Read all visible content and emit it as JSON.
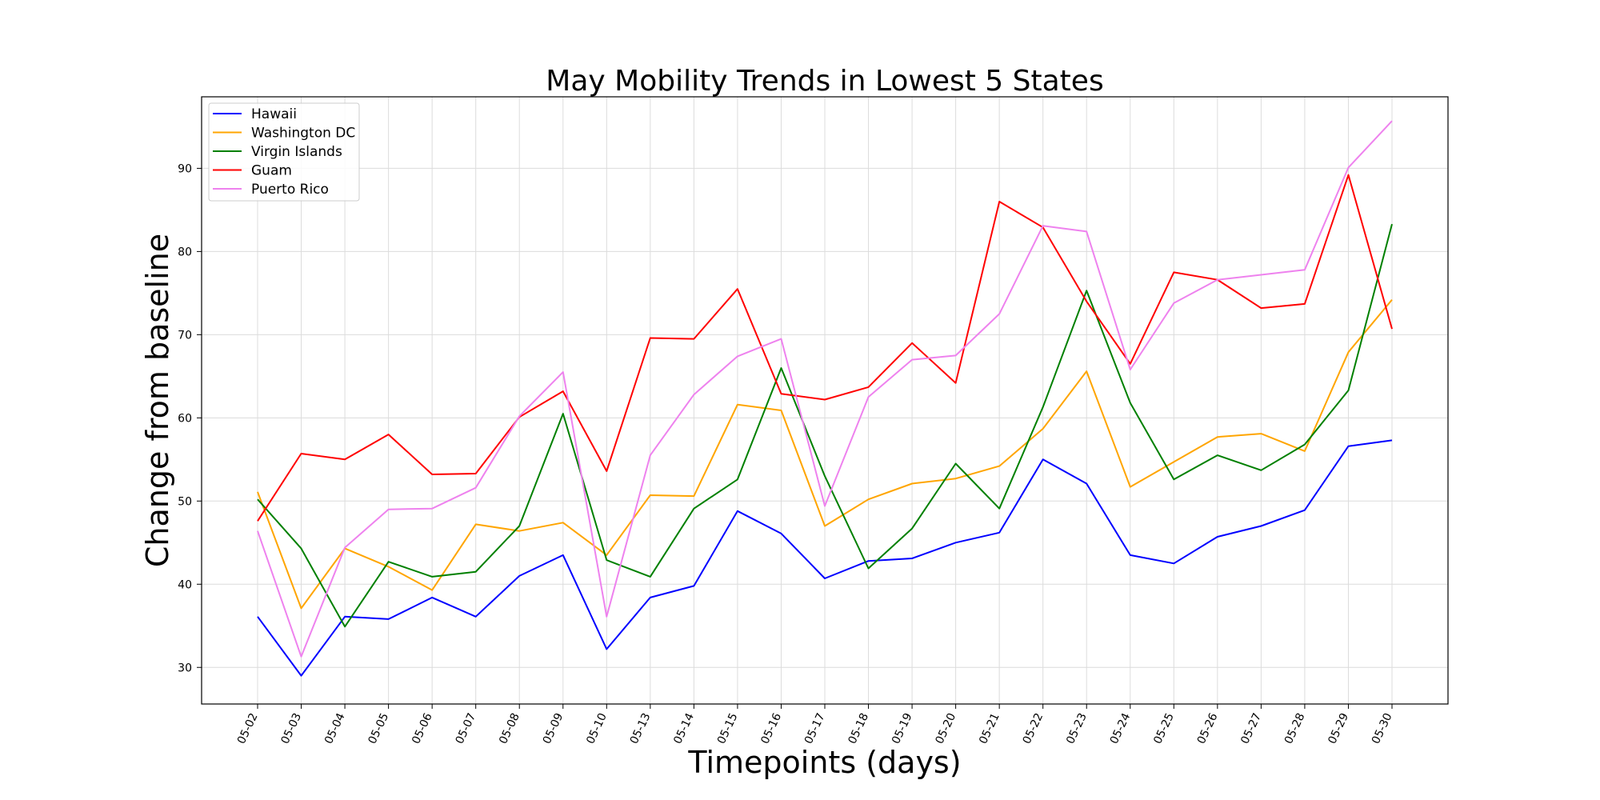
{
  "chart_data": {
    "type": "line",
    "title": "May Mobility Trends in Lowest 5 States",
    "xlabel": "Timepoints (days)",
    "ylabel": "Change from baseline",
    "categories": [
      "05-02",
      "05-03",
      "05-04",
      "05-05",
      "05-06",
      "05-07",
      "05-08",
      "05-09",
      "05-10",
      "05-13",
      "05-14",
      "05-15",
      "05-16",
      "05-17",
      "05-18",
      "05-19",
      "05-20",
      "05-21",
      "05-22",
      "05-23",
      "05-24",
      "05-25",
      "05-26",
      "05-27",
      "05-28",
      "05-29",
      "05-30"
    ],
    "ylim": [
      25.6,
      98.6
    ],
    "yticks": [
      30,
      40,
      50,
      60,
      70,
      80,
      90
    ],
    "grid": true,
    "legend_position": "upper-left",
    "series": [
      {
        "name": "Hawaii",
        "color": "#0000ff",
        "values": [
          36.1,
          29.0,
          36.1,
          35.8,
          38.4,
          36.1,
          41.0,
          43.5,
          32.2,
          38.4,
          39.8,
          48.8,
          46.1,
          40.7,
          42.8,
          43.1,
          45.0,
          46.2,
          55.0,
          52.1,
          43.5,
          42.5,
          45.7,
          47.0,
          48.9,
          56.6,
          57.3
        ]
      },
      {
        "name": "Washington DC",
        "color": "#ffa500",
        "values": [
          51.1,
          37.1,
          44.3,
          42.1,
          39.3,
          47.2,
          46.4,
          47.4,
          43.5,
          50.7,
          50.6,
          61.6,
          60.9,
          47.0,
          50.2,
          52.1,
          52.7,
          54.2,
          58.7,
          65.6,
          51.7,
          54.7,
          57.7,
          58.1,
          56.0,
          67.9,
          74.2
        ]
      },
      {
        "name": "Virgin Islands",
        "color": "#008000",
        "values": [
          50.2,
          44.3,
          34.9,
          42.7,
          40.9,
          41.5,
          47.0,
          60.5,
          42.9,
          40.9,
          49.1,
          52.6,
          66.0,
          53.0,
          41.9,
          46.7,
          54.5,
          49.1,
          61.3,
          75.3,
          61.8,
          52.6,
          55.5,
          53.7,
          56.8,
          63.3,
          83.3
        ]
      },
      {
        "name": "Guam",
        "color": "#ff0000",
        "values": [
          47.6,
          55.7,
          55.0,
          58.0,
          53.2,
          53.3,
          60.1,
          63.2,
          53.6,
          69.6,
          69.5,
          75.5,
          62.9,
          62.2,
          63.7,
          69.0,
          64.2,
          86.0,
          82.9,
          74.0,
          66.5,
          77.5,
          76.6,
          73.2,
          73.7,
          89.2,
          70.7
        ]
      },
      {
        "name": "Puerto Rico",
        "color": "#ee82ee",
        "values": [
          46.4,
          31.3,
          44.4,
          49.0,
          49.1,
          51.6,
          60.2,
          65.5,
          36.1,
          55.5,
          62.8,
          67.4,
          69.5,
          49.4,
          62.5,
          67.0,
          67.5,
          72.5,
          83.1,
          82.4,
          65.8,
          73.8,
          76.6,
          77.2,
          77.8,
          90.1,
          95.7
        ]
      }
    ]
  }
}
